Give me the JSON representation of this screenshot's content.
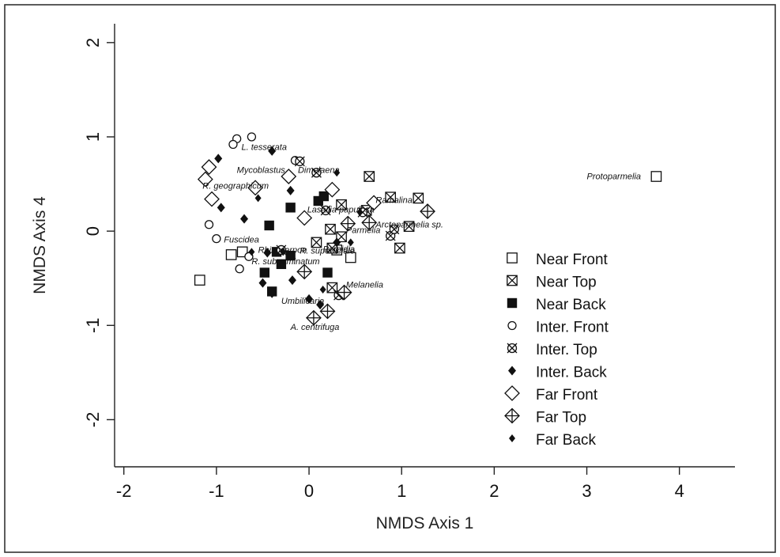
{
  "chart_data": {
    "type": "scatter",
    "xlabel": "NMDS Axis 1",
    "ylabel": "NMDS Axis 4",
    "xlim": [
      -2.1,
      4.6
    ],
    "ylim": [
      -2.5,
      2.2
    ],
    "x_ticks": [
      "-2",
      "-1",
      "0",
      "1",
      "2",
      "3",
      "4"
    ],
    "y_ticks": [
      "-2",
      "-1",
      "0",
      "1",
      "2"
    ],
    "grid": false,
    "legend_position": "right",
    "series": [
      {
        "name": "Near Front",
        "marker": "square-open",
        "points": [
          [
            -1.18,
            -0.52
          ],
          [
            -0.84,
            -0.25
          ],
          [
            -0.72,
            -0.22
          ],
          [
            0.45,
            -0.28
          ],
          [
            0.3,
            -0.2
          ],
          [
            3.75,
            0.58
          ]
        ]
      },
      {
        "name": "Near  Top",
        "marker": "square-x",
        "points": [
          [
            0.65,
            0.58
          ],
          [
            0.88,
            0.36
          ],
          [
            0.62,
            0.22
          ],
          [
            1.18,
            0.35
          ],
          [
            0.35,
            0.28
          ],
          [
            0.23,
            0.02
          ],
          [
            0.35,
            -0.06
          ],
          [
            0.98,
            -0.18
          ],
          [
            1.08,
            0.05
          ],
          [
            0.25,
            -0.6
          ],
          [
            0.25,
            -0.18
          ],
          [
            0.08,
            -0.12
          ]
        ]
      },
      {
        "name": "Near Back",
        "marker": "square-filled",
        "points": [
          [
            -0.2,
            0.25
          ],
          [
            0.1,
            0.32
          ],
          [
            0.16,
            0.37
          ],
          [
            -0.43,
            0.06
          ],
          [
            -0.3,
            -0.35
          ],
          [
            -0.48,
            -0.44
          ],
          [
            -0.4,
            -0.64
          ],
          [
            0.2,
            -0.44
          ],
          [
            -0.35,
            -0.22
          ],
          [
            -0.2,
            -0.26
          ]
        ]
      },
      {
        "name": "Inter. Front",
        "marker": "circle-open",
        "points": [
          [
            -0.62,
            1.0
          ],
          [
            -0.78,
            0.98
          ],
          [
            -0.82,
            0.92
          ],
          [
            -0.15,
            0.75
          ],
          [
            -1.08,
            0.07
          ],
          [
            -1.0,
            -0.08
          ],
          [
            -0.75,
            -0.4
          ],
          [
            -0.65,
            -0.27
          ]
        ]
      },
      {
        "name": "Inter.  Top",
        "marker": "x-circle",
        "points": [
          [
            -0.1,
            0.74
          ],
          [
            0.08,
            0.62
          ],
          [
            0.18,
            0.22
          ],
          [
            0.58,
            0.2
          ],
          [
            0.88,
            -0.05
          ],
          [
            0.92,
            0.02
          ],
          [
            -0.3,
            -0.2
          ],
          [
            0.32,
            -0.68
          ]
        ]
      },
      {
        "name": "Inter. Back",
        "marker": "diamond-filled",
        "points": [
          [
            -0.98,
            0.77
          ],
          [
            -0.4,
            0.85
          ],
          [
            -0.2,
            0.43
          ],
          [
            -0.95,
            0.25
          ],
          [
            -0.7,
            0.13
          ],
          [
            -0.45,
            -0.23
          ],
          [
            -0.5,
            -0.55
          ],
          [
            -0.4,
            -0.66
          ],
          [
            -0.18,
            -0.52
          ],
          [
            0.0,
            -0.72
          ],
          [
            0.12,
            -0.78
          ],
          [
            0.3,
            -0.12
          ]
        ]
      },
      {
        "name": "Far Front",
        "marker": "diamond-open",
        "points": [
          [
            -1.08,
            0.68
          ],
          [
            -1.12,
            0.55
          ],
          [
            -1.05,
            0.34
          ],
          [
            -0.58,
            0.46
          ],
          [
            -0.22,
            0.58
          ],
          [
            0.25,
            0.44
          ],
          [
            -0.05,
            0.14
          ],
          [
            0.7,
            0.3
          ]
        ]
      },
      {
        "name": "Far Top",
        "marker": "diamond-plus",
        "points": [
          [
            1.28,
            0.21
          ],
          [
            0.65,
            0.09
          ],
          [
            0.42,
            0.08
          ],
          [
            -0.05,
            -0.43
          ],
          [
            0.2,
            -0.85
          ],
          [
            0.05,
            -0.92
          ],
          [
            0.38,
            -0.65
          ]
        ]
      },
      {
        "name": "Far Back",
        "marker": "diamond-small",
        "points": [
          [
            -0.55,
            0.35
          ],
          [
            0.3,
            0.62
          ],
          [
            0.55,
            0.2
          ],
          [
            -0.62,
            -0.22
          ],
          [
            -0.28,
            -0.22
          ],
          [
            0.15,
            -0.62
          ],
          [
            0.45,
            -0.12
          ]
        ]
      }
    ],
    "annotations": [
      {
        "text": "L. tesserata",
        "x": -0.73,
        "y": 0.86
      },
      {
        "text": "Mycoblastus",
        "x": -0.78,
        "y": 0.62
      },
      {
        "text": "R. geographicum",
        "x": -1.15,
        "y": 0.45
      },
      {
        "text": "Dimelaena",
        "x": -0.12,
        "y": 0.62
      },
      {
        "text": "Protoparmelia",
        "x": 3.0,
        "y": 0.55
      },
      {
        "text": "Lasallia papulosa",
        "x": -0.02,
        "y": 0.2
      },
      {
        "text": "Ramalina",
        "x": 0.72,
        "y": 0.3
      },
      {
        "text": "Parmelia",
        "x": 0.4,
        "y": -0.02
      },
      {
        "text": "Arctoparmelia sp.",
        "x": 0.72,
        "y": 0.04
      },
      {
        "text": "Fuscidea",
        "x": -0.92,
        "y": -0.12
      },
      {
        "text": "Rhizocarpon",
        "x": -0.55,
        "y": -0.23
      },
      {
        "text": "Porpidia",
        "x": 0.15,
        "y": -0.22
      },
      {
        "text": "R. superficiale",
        "x": -0.1,
        "y": -0.24
      },
      {
        "text": "R. subgeminatum",
        "x": -0.62,
        "y": -0.35
      },
      {
        "text": "Melanelia",
        "x": 0.4,
        "y": -0.6
      },
      {
        "text": "Umbilicaria",
        "x": -0.3,
        "y": -0.77
      },
      {
        "text": "A. centrifuga",
        "x": -0.2,
        "y": -1.05
      }
    ]
  }
}
